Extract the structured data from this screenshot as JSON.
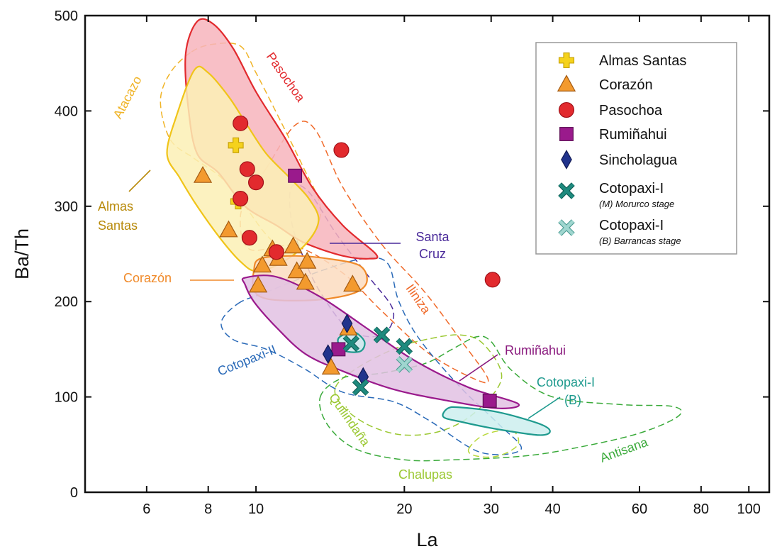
{
  "chart_data": {
    "type": "scatter",
    "xlabel": "La",
    "ylabel": "Ba/Th",
    "x_scale": "log",
    "xlim": [
      4.5,
      110
    ],
    "ylim": [
      0,
      500
    ],
    "x_ticks": [
      6,
      8,
      10,
      20,
      30,
      40,
      60,
      80,
      100
    ],
    "y_ticks": [
      0,
      100,
      200,
      300,
      400,
      500
    ],
    "legend_position": "top-right",
    "series": [
      {
        "name": "Almas Santas",
        "marker": "cross",
        "color": "#f5d21c",
        "points": [
          [
            9.1,
            364
          ],
          [
            9.2,
            305
          ]
        ]
      },
      {
        "name": "Corazón",
        "marker": "triangle",
        "color": "#f39a2e",
        "points": [
          [
            7.8,
            332
          ],
          [
            8.8,
            275
          ],
          [
            10.3,
            238
          ],
          [
            10.1,
            217
          ],
          [
            10.8,
            255
          ],
          [
            11.1,
            245
          ],
          [
            11.9,
            258
          ],
          [
            12.1,
            232
          ],
          [
            12.6,
            220
          ],
          [
            12.7,
            242
          ],
          [
            15.4,
            172
          ],
          [
            15.7,
            218
          ],
          [
            14.2,
            131
          ]
        ]
      },
      {
        "name": "Pasochoa",
        "marker": "circle",
        "color": "#e22a2e",
        "points": [
          [
            9.3,
            387
          ],
          [
            9.6,
            339
          ],
          [
            10.0,
            325
          ],
          [
            9.3,
            308
          ],
          [
            9.7,
            267
          ],
          [
            11.0,
            252
          ],
          [
            14.9,
            359
          ],
          [
            30.2,
            223
          ]
        ]
      },
      {
        "name": "Rumiñahui",
        "marker": "square",
        "color": "#9a1a8c",
        "points": [
          [
            12.0,
            332
          ],
          [
            14.7,
            150
          ],
          [
            29.8,
            96
          ]
        ]
      },
      {
        "name": "Sincholagua",
        "marker": "diamond",
        "color": "#21338c",
        "points": [
          [
            14.0,
            145
          ],
          [
            15.3,
            177
          ],
          [
            16.5,
            121
          ]
        ]
      },
      {
        "name": "Cotopaxi-I",
        "subtitle": "(M) Morurco stage",
        "marker": "x",
        "color": "#1e8a7e",
        "points": [
          [
            15.6,
            156
          ],
          [
            18.0,
            165
          ],
          [
            20.0,
            153
          ],
          [
            16.3,
            110
          ]
        ]
      },
      {
        "name": "Cotopaxi-I",
        "subtitle": "(B) Barrancas stage",
        "marker": "x-light",
        "color": "#9fd6cf",
        "points": [
          [
            20.0,
            134
          ]
        ]
      }
    ],
    "regions": [
      {
        "label": "Pasochoa",
        "style": "filled",
        "stroke": "#e22a2e",
        "fill": "#f7b4bc",
        "polygon": [
          [
            7.6,
            494
          ],
          [
            8.2,
            491
          ],
          [
            9.0,
            465
          ],
          [
            10.0,
            420
          ],
          [
            11.5,
            370
          ],
          [
            13.0,
            320
          ],
          [
            15.0,
            280
          ],
          [
            17.5,
            250
          ],
          [
            17.0,
            245
          ],
          [
            15.0,
            248
          ],
          [
            12.5,
            262
          ],
          [
            11.0,
            280
          ],
          [
            9.5,
            300
          ],
          [
            8.4,
            335
          ],
          [
            7.6,
            355
          ],
          [
            7.3,
            400
          ],
          [
            7.2,
            460
          ]
        ]
      },
      {
        "label": "Almas Santas",
        "style": "filled",
        "stroke": "#f0c419",
        "fill": "#fcf0b5",
        "polygon": [
          [
            7.5,
            443
          ],
          [
            8.0,
            440
          ],
          [
            8.8,
            415
          ],
          [
            9.6,
            385
          ],
          [
            10.5,
            355
          ],
          [
            11.7,
            330
          ],
          [
            12.8,
            308
          ],
          [
            13.4,
            285
          ],
          [
            12.6,
            260
          ],
          [
            11.2,
            240
          ],
          [
            10.0,
            232
          ],
          [
            9.3,
            242
          ],
          [
            8.5,
            265
          ],
          [
            7.6,
            300
          ],
          [
            7.0,
            330
          ],
          [
            6.6,
            355
          ],
          [
            6.9,
            395
          ]
        ]
      },
      {
        "label": "Corazón",
        "style": "filled",
        "stroke": "#f08a2a",
        "fill": "#fcdcbf",
        "polygon": [
          [
            10.2,
            245
          ],
          [
            12.0,
            248
          ],
          [
            14.0,
            245
          ],
          [
            16.2,
            238
          ],
          [
            16.8,
            222
          ],
          [
            16.0,
            210
          ],
          [
            14.0,
            203
          ],
          [
            12.0,
            201
          ],
          [
            10.5,
            203
          ],
          [
            9.9,
            212
          ],
          [
            9.9,
            232
          ]
        ]
      },
      {
        "label": "Rumiñahui",
        "style": "filled",
        "stroke": "#9a1a8c",
        "fill": "#e2c1e3",
        "polygon": [
          [
            9.5,
            225
          ],
          [
            11.0,
            226
          ],
          [
            13.5,
            205
          ],
          [
            17.0,
            170
          ],
          [
            21.0,
            138
          ],
          [
            27.0,
            110
          ],
          [
            34.0,
            93
          ],
          [
            31.0,
            88
          ],
          [
            24.5,
            96
          ],
          [
            19.0,
            108
          ],
          [
            15.0,
            127
          ],
          [
            12.6,
            145
          ],
          [
            11.0,
            173
          ],
          [
            9.9,
            200
          ],
          [
            9.5,
            218
          ]
        ]
      },
      {
        "label": "Cotopaxi-I (M)",
        "style": "filled",
        "stroke": "#1e9a8e",
        "fill": "#cdeeee",
        "polygon": [
          [
            14.8,
            163
          ],
          [
            15.8,
            168
          ],
          [
            16.6,
            158
          ],
          [
            16.3,
            148
          ],
          [
            15.2,
            148
          ],
          [
            14.7,
            156
          ]
        ]
      },
      {
        "label": "Cotopaxi-I (B)",
        "style": "filled",
        "stroke": "#1e9a8e",
        "fill": "#cdeeee",
        "polygon": [
          [
            24.5,
            88
          ],
          [
            26.0,
            89
          ],
          [
            31.0,
            84
          ],
          [
            37.5,
            72
          ],
          [
            39.5,
            64
          ],
          [
            37.5,
            60
          ],
          [
            31.0,
            66
          ],
          [
            26.0,
            74
          ],
          [
            24.0,
            79
          ]
        ]
      },
      {
        "label": "Atacazo",
        "style": "dashed",
        "stroke": "#f0b428",
        "polygon": [
          [
            7.4,
            462
          ],
          [
            8.2,
            470
          ],
          [
            9.3,
            468
          ],
          [
            10.0,
            440
          ],
          [
            11.2,
            390
          ],
          [
            12.5,
            340
          ],
          [
            13.5,
            300
          ],
          [
            13.0,
            270
          ],
          [
            11.5,
            255
          ],
          [
            10.5,
            270
          ],
          [
            9.5,
            300
          ],
          [
            8.5,
            330
          ],
          [
            7.5,
            350
          ],
          [
            6.7,
            370
          ],
          [
            6.4,
            410
          ],
          [
            6.7,
            440
          ]
        ]
      },
      {
        "label": "Iliniza",
        "style": "dashed",
        "stroke": "#f06a2a",
        "polygon": [
          [
            10.5,
            340
          ],
          [
            12.0,
            385
          ],
          [
            13.2,
            380
          ],
          [
            15.0,
            320
          ],
          [
            18.0,
            260
          ],
          [
            22.0,
            210
          ],
          [
            26.0,
            160
          ],
          [
            29.5,
            120
          ],
          [
            28.0,
            118
          ],
          [
            22.5,
            145
          ],
          [
            18.0,
            190
          ],
          [
            15.0,
            230
          ],
          [
            12.0,
            258
          ],
          [
            9.7,
            255
          ],
          [
            9.3,
            290
          ],
          [
            9.9,
            320
          ]
        ]
      },
      {
        "label": "Santa Cruz",
        "style": "dashed",
        "stroke": "#4a2a9a",
        "polygon": [
          [
            11.8,
            320
          ],
          [
            12.8,
            315
          ],
          [
            14.6,
            270
          ],
          [
            17.0,
            225
          ],
          [
            19.0,
            190
          ],
          [
            18.0,
            165
          ],
          [
            15.5,
            170
          ],
          [
            13.5,
            210
          ],
          [
            12.4,
            250
          ],
          [
            11.8,
            285
          ]
        ]
      },
      {
        "label": "Cotopaxi-II",
        "style": "dashed",
        "stroke": "#2a6ab8",
        "polygon": [
          [
            9.2,
            198
          ],
          [
            10.5,
            210
          ],
          [
            13.5,
            232
          ],
          [
            16.5,
            245
          ],
          [
            18.5,
            240
          ],
          [
            19.5,
            200
          ],
          [
            21.5,
            160
          ],
          [
            26.0,
            110
          ],
          [
            31.0,
            72
          ],
          [
            34.5,
            45
          ],
          [
            28.5,
            42
          ],
          [
            22.5,
            75
          ],
          [
            19.0,
            95
          ],
          [
            15.0,
            105
          ],
          [
            12.5,
            130
          ],
          [
            10.5,
            150
          ],
          [
            9.0,
            160
          ],
          [
            8.5,
            178
          ]
        ]
      },
      {
        "label": "Quilindaña",
        "style": "dashed",
        "stroke": "#9bc832",
        "polygon": [
          [
            14.5,
            110
          ],
          [
            16.0,
            130
          ],
          [
            19.0,
            150
          ],
          [
            22.0,
            160
          ],
          [
            26.0,
            165
          ],
          [
            29.0,
            155
          ],
          [
            31.5,
            120
          ],
          [
            28.0,
            85
          ],
          [
            24.0,
            65
          ],
          [
            20.0,
            60
          ],
          [
            17.0,
            70
          ],
          [
            15.0,
            90
          ]
        ]
      },
      {
        "label": "Chalupas",
        "style": "dashed",
        "stroke": "#b8d83a",
        "polygon": [
          [
            27.0,
            45
          ],
          [
            29.0,
            60
          ],
          [
            33.0,
            65
          ],
          [
            34.0,
            50
          ],
          [
            31.0,
            38
          ],
          [
            28.0,
            38
          ]
        ]
      },
      {
        "label": "Antisana",
        "style": "dashed",
        "stroke": "#3aaa3a",
        "polygon": [
          [
            13.5,
            100
          ],
          [
            15.0,
            120
          ],
          [
            18.0,
            125
          ],
          [
            22.0,
            135
          ],
          [
            25.0,
            150
          ],
          [
            28.0,
            163
          ],
          [
            30.0,
            158
          ],
          [
            33.0,
            128
          ],
          [
            40.0,
            100
          ],
          [
            55.0,
            92
          ],
          [
            70.0,
            90
          ],
          [
            72.0,
            80
          ],
          [
            60.0,
            62
          ],
          [
            45.0,
            47
          ],
          [
            35.0,
            38
          ],
          [
            25.0,
            34
          ],
          [
            20.0,
            34
          ],
          [
            16.0,
            45
          ],
          [
            14.0,
            70
          ]
        ]
      }
    ],
    "annotations": [
      {
        "text": "Pasochoa",
        "color": "#e22a2e"
      },
      {
        "text": "Atacazo",
        "color": "#f0b428"
      },
      {
        "text": "Almas",
        "color": "#b88a0a"
      },
      {
        "text": "Santas",
        "color": "#b88a0a"
      },
      {
        "text": "Santa",
        "color": "#4a2a9a"
      },
      {
        "text": "Cruz",
        "color": "#4a2a9a"
      },
      {
        "text": "Corazón",
        "color": "#f08a2a"
      },
      {
        "text": "Iliniza",
        "color": "#f06a2a"
      },
      {
        "text": "Rumiñahui",
        "color": "#8a1a7e"
      },
      {
        "text": "Cotopaxi-II",
        "color": "#2a6ab8"
      },
      {
        "text": "Cotopaxi-I",
        "color": "#1e9a8e"
      },
      {
        "text": "(B)",
        "color": "#1e9a8e"
      },
      {
        "text": "Quilindaña",
        "color": "#9bc832"
      },
      {
        "text": "Chalupas",
        "color": "#9bc832"
      },
      {
        "text": "Antisana",
        "color": "#3aaa3a"
      }
    ]
  }
}
